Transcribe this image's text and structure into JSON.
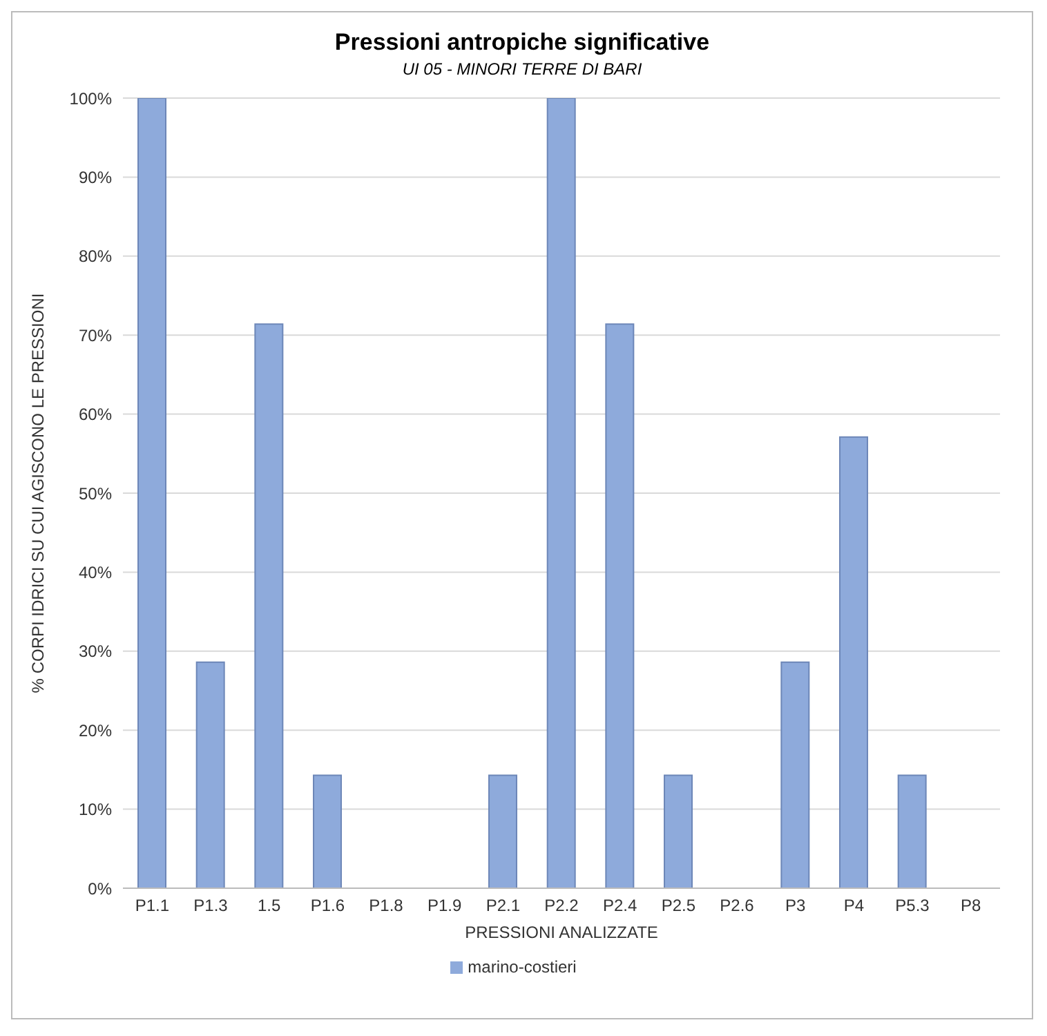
{
  "chart_data": {
    "type": "bar",
    "title": "Pressioni antropiche significative",
    "subtitle": "UI 05 - MINORI TERRE DI BARI",
    "xlabel": "PRESSIONI ANALIZZATE",
    "ylabel": "% CORPI IDRICI SU CUI AGISCONO LE PRESSIONI",
    "categories": [
      "P1.1",
      "P1.3",
      "1.5",
      "P1.6",
      "P1.8",
      "P1.9",
      "P2.1",
      "P2.2",
      "P2.4",
      "P2.5",
      "P2.6",
      "P3",
      "P4",
      "P5.3",
      "P8"
    ],
    "series": [
      {
        "name": "marino-costieri",
        "color": "#8eaadb",
        "values": [
          100,
          28.6,
          71.4,
          14.3,
          0,
          0,
          14.3,
          100,
          71.4,
          14.3,
          0,
          28.6,
          57.1,
          14.3,
          0
        ]
      }
    ],
    "ylim": [
      0,
      100
    ],
    "yticks": [
      {
        "value": 0,
        "label": "0%"
      },
      {
        "value": 10,
        "label": "10%"
      },
      {
        "value": 20,
        "label": "20%"
      },
      {
        "value": 30,
        "label": "30%"
      },
      {
        "value": 40,
        "label": "40%"
      },
      {
        "value": 50,
        "label": "50%"
      },
      {
        "value": 60,
        "label": "60%"
      },
      {
        "value": 70,
        "label": "70%"
      },
      {
        "value": 80,
        "label": "80%"
      },
      {
        "value": 90,
        "label": "90%"
      },
      {
        "value": 100,
        "label": "100%"
      }
    ],
    "grid": "y",
    "legend": "bottom"
  }
}
